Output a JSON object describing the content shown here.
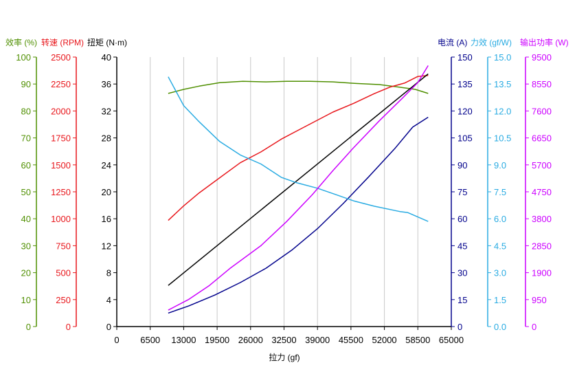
{
  "chart_data": {
    "type": "line",
    "xlabel": "拉力 (gf)",
    "x_ticks": [
      "0",
      "6500",
      "13000",
      "19500",
      "26000",
      "32500",
      "39000",
      "45500",
      "52000",
      "58500",
      "65000"
    ],
    "xlim": [
      0,
      65000
    ],
    "grid": "vertical",
    "colors": {
      "efficiency": "#4f8f00",
      "rpm": "#e8161b",
      "torque": "#000000",
      "current": "#00008b",
      "force_eff": "#29abe2",
      "power": "#cc00ff"
    },
    "axes": [
      {
        "key": "efficiency",
        "label": "效率 (%)",
        "side": "left",
        "min": 0,
        "max": 100,
        "ticks": [
          "0",
          "10",
          "20",
          "30",
          "40",
          "50",
          "60",
          "70",
          "80",
          "90",
          "100"
        ]
      },
      {
        "key": "rpm",
        "label": "转速 (RPM)",
        "side": "left",
        "min": 0,
        "max": 2500,
        "ticks": [
          "0",
          "250",
          "500",
          "750",
          "1000",
          "1250",
          "1500",
          "1750",
          "2000",
          "2250",
          "2500"
        ]
      },
      {
        "key": "torque",
        "label": "扭矩 (N·m)",
        "side": "left",
        "min": 0,
        "max": 40,
        "ticks": [
          "0",
          "4",
          "8",
          "12",
          "16",
          "20",
          "24",
          "28",
          "32",
          "36",
          "40"
        ]
      },
      {
        "key": "current",
        "label": "电流 (A)",
        "side": "right",
        "min": 0,
        "max": 150,
        "ticks": [
          "0",
          "15",
          "30",
          "45",
          "60",
          "75",
          "90",
          "105",
          "120",
          "135",
          "150"
        ]
      },
      {
        "key": "force_eff",
        "label": "力效 (gf/W)",
        "side": "right",
        "min": 0,
        "max": 15,
        "ticks": [
          "0.0",
          "1.5",
          "3.0",
          "4.5",
          "6.0",
          "7.5",
          "9.0",
          "10.5",
          "12.0",
          "13.5",
          "15.0"
        ]
      },
      {
        "key": "power",
        "label": "输出功率 (W)",
        "side": "right",
        "min": 0,
        "max": 9500,
        "ticks": [
          "0",
          "950",
          "1900",
          "2850",
          "3800",
          "4750",
          "5700",
          "6650",
          "7600",
          "8550",
          "9500"
        ]
      }
    ],
    "series": [
      {
        "axis": "efficiency",
        "points": [
          [
            10000,
            86.5
          ],
          [
            13000,
            88.0
          ],
          [
            16000,
            89.2
          ],
          [
            20000,
            90.5
          ],
          [
            24500,
            91.0
          ],
          [
            29000,
            90.8
          ],
          [
            33000,
            91.0
          ],
          [
            37500,
            91.0
          ],
          [
            42000,
            90.8
          ],
          [
            46500,
            90.2
          ],
          [
            51000,
            89.8
          ],
          [
            55000,
            88.8
          ],
          [
            58000,
            88.0
          ],
          [
            60500,
            86.5
          ]
        ]
      },
      {
        "axis": "rpm",
        "points": [
          [
            10000,
            985
          ],
          [
            13000,
            1120
          ],
          [
            16000,
            1240
          ],
          [
            20000,
            1380
          ],
          [
            24000,
            1520
          ],
          [
            28000,
            1620
          ],
          [
            32000,
            1740
          ],
          [
            36000,
            1840
          ],
          [
            42000,
            1990
          ],
          [
            46000,
            2070
          ],
          [
            50000,
            2160
          ],
          [
            53000,
            2220
          ],
          [
            56000,
            2260
          ],
          [
            58500,
            2320
          ],
          [
            60500,
            2330
          ]
        ]
      },
      {
        "axis": "torque",
        "points": [
          [
            10000,
            6.1
          ],
          [
            60500,
            37.5
          ]
        ]
      },
      {
        "axis": "current",
        "points": [
          [
            10000,
            7.5
          ],
          [
            14000,
            11.5
          ],
          [
            19000,
            17.5
          ],
          [
            24000,
            24.5
          ],
          [
            29000,
            32.5
          ],
          [
            34000,
            42.5
          ],
          [
            39000,
            54.5
          ],
          [
            44000,
            68.5
          ],
          [
            49000,
            83.5
          ],
          [
            54000,
            99.0
          ],
          [
            57500,
            111.0
          ],
          [
            60500,
            116.5
          ]
        ]
      },
      {
        "axis": "force_eff",
        "points": [
          [
            10000,
            13.9
          ],
          [
            13000,
            12.3
          ],
          [
            16000,
            11.4
          ],
          [
            20000,
            10.3
          ],
          [
            24000,
            9.55
          ],
          [
            28000,
            9.05
          ],
          [
            32000,
            8.3
          ],
          [
            35000,
            8.0
          ],
          [
            39000,
            7.7
          ],
          [
            43000,
            7.3
          ],
          [
            46000,
            7.0
          ],
          [
            50000,
            6.7
          ],
          [
            55000,
            6.4
          ],
          [
            56500,
            6.35
          ],
          [
            58500,
            6.1
          ],
          [
            60500,
            5.85
          ]
        ]
      },
      {
        "axis": "power",
        "points": [
          [
            10000,
            580
          ],
          [
            14000,
            960
          ],
          [
            18000,
            1450
          ],
          [
            22000,
            2050
          ],
          [
            28000,
            2850
          ],
          [
            33000,
            3700
          ],
          [
            38000,
            4650
          ],
          [
            42000,
            5500
          ],
          [
            46000,
            6300
          ],
          [
            51000,
            7250
          ],
          [
            55500,
            8050
          ],
          [
            58500,
            8600
          ],
          [
            60500,
            9200
          ]
        ]
      }
    ]
  }
}
